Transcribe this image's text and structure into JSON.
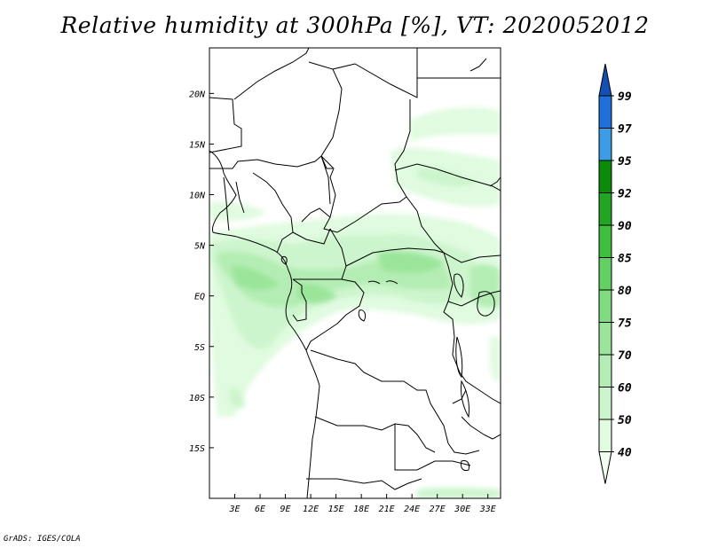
{
  "title": "Relative humidity at 300hPa [%], VT: 2020052012",
  "credit": "GrADS: IGES/COLA",
  "map": {
    "lon_ticks": [
      "3E",
      "6E",
      "9E",
      "12E",
      "15E",
      "18E",
      "21E",
      "24E",
      "27E",
      "30E",
      "33E"
    ],
    "lat_ticks": [
      "20N",
      "15N",
      "10N",
      "5N",
      "EQ",
      "5S",
      "10S",
      "15S"
    ],
    "lon_range": [
      0,
      34.5
    ],
    "lat_range": [
      -20,
      24.5
    ]
  },
  "colorbar": {
    "labels": [
      "40",
      "50",
      "60",
      "70",
      "75",
      "80",
      "85",
      "90",
      "92",
      "95",
      "97",
      "99"
    ],
    "colors": [
      "#f0fff0",
      "#e0fbe0",
      "#cdf5cd",
      "#b4edb4",
      "#9be59b",
      "#80dc80",
      "#62d062",
      "#3fbe3f",
      "#22a522",
      "#0a8c0a",
      "#3c9ce6",
      "#1f70d8",
      "#1450b4"
    ]
  }
}
